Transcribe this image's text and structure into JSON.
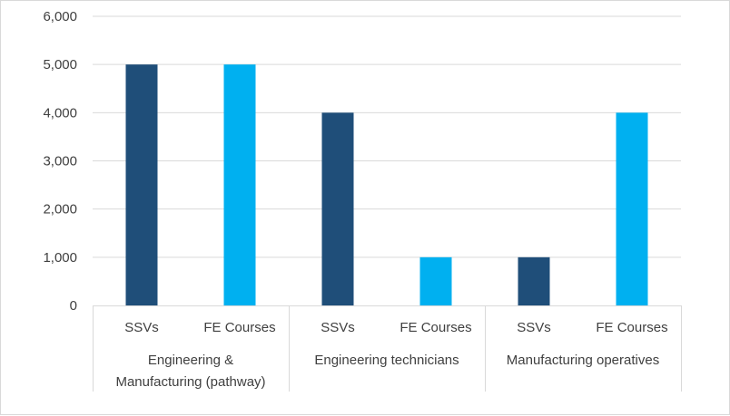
{
  "chart_data": {
    "type": "bar",
    "title": "",
    "xlabel": "",
    "ylabel": "",
    "ylim": [
      0,
      6000
    ],
    "yticks": [
      0,
      1000,
      2000,
      3000,
      4000,
      5000,
      6000
    ],
    "ytick_labels": [
      "0",
      "1,000",
      "2,000",
      "3,000",
      "4,000",
      "5,000",
      "6,000"
    ],
    "grid": true,
    "legend": "none",
    "groups": [
      {
        "label_lines": [
          "Engineering &",
          "Manufacturing (pathway)"
        ],
        "bars": [
          {
            "category": "SSVs",
            "value": 5000,
            "color": "#1f4e79"
          },
          {
            "category": "FE Courses",
            "value": 5000,
            "color": "#00b0f0"
          }
        ]
      },
      {
        "label_lines": [
          "Engineering technicians"
        ],
        "bars": [
          {
            "category": "SSVs",
            "value": 4000,
            "color": "#1f4e79"
          },
          {
            "category": "FE Courses",
            "value": 1000,
            "color": "#00b0f0"
          }
        ]
      },
      {
        "label_lines": [
          "Manufacturing operatives"
        ],
        "bars": [
          {
            "category": "SSVs",
            "value": 1000,
            "color": "#1f4e79"
          },
          {
            "category": "FE Courses",
            "value": 4000,
            "color": "#00b0f0"
          }
        ]
      }
    ]
  }
}
